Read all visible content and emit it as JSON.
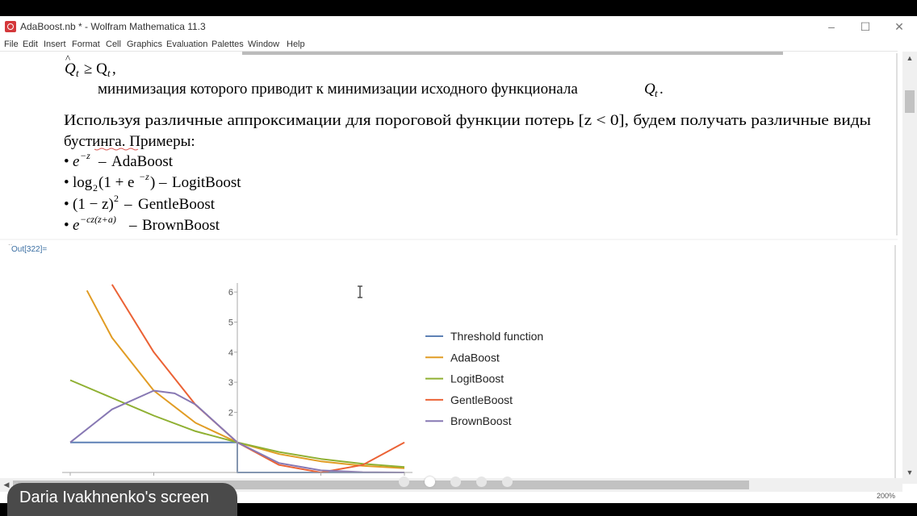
{
  "window": {
    "title": "AdaBoost.nb * - Wolfram Mathematica 11.3",
    "controls": {
      "minimize": "–",
      "maximize": "☐",
      "close": "✕"
    }
  },
  "menu": [
    "File",
    "Edit",
    "Insert",
    "Format",
    "Cell",
    "Graphics",
    "Evaluation",
    "Palettes",
    "Window",
    "Help"
  ],
  "text": {
    "ineq_lhs": "Q",
    "ineq_rhs": "≥ Q",
    "ineq_tail": ",",
    "sub_t": "t",
    "minimization": "минимизация которого приводит к минимизации исходного функционала",
    "q": "Q",
    "dot": ".",
    "para": "Используя различные аппроксимации для пороговой функции потерь [z < 0], будем получать различные виды",
    "para_cont": "бустинга. Примеры:",
    "bullet": "•",
    "dash": "–",
    "ex1_base": "e",
    "ex1_sup": "−z",
    "ex1_name": "AdaBoost",
    "ex2_log": "log",
    "ex2_sub": "2",
    "ex2_arg_open": "(1 + e",
    "ex2_sup": "−z",
    "ex2_close": ")",
    "ex2_name": "LogitBoost",
    "ex3": "(1 − z)",
    "ex3_sup": "2",
    "ex3_name": "GentleBoost",
    "ex4_base": "e",
    "ex4_sup": "−cz(z+a)",
    "ex4_name": "BrownBoost"
  },
  "out_label": "Out[322]=",
  "chart_data": {
    "type": "line",
    "xlim": [
      -2,
      2
    ],
    "ylim": [
      0,
      6.3
    ],
    "x_ticks": [
      -2,
      -1,
      1,
      2
    ],
    "y_ticks": [
      2,
      3,
      4,
      5,
      6
    ],
    "legend_position": "right",
    "series": [
      {
        "name": "Threshold function",
        "color": "#5e81b5",
        "x": [
          -2,
          0,
          0,
          2
        ],
        "y": [
          1,
          1,
          0,
          0
        ]
      },
      {
        "name": "AdaBoost",
        "color": "#e19c24",
        "x": [
          -1.8,
          -1.5,
          -1,
          -0.5,
          0,
          0.5,
          1,
          1.5,
          2
        ],
        "y": [
          6.05,
          4.48,
          2.72,
          1.65,
          1,
          0.61,
          0.37,
          0.22,
          0.14
        ]
      },
      {
        "name": "LogitBoost",
        "color": "#8fb032",
        "x": [
          -2,
          -1.5,
          -1,
          -0.5,
          0,
          0.5,
          1,
          1.5,
          2
        ],
        "y": [
          3.07,
          2.48,
          1.89,
          1.37,
          1,
          0.68,
          0.45,
          0.29,
          0.18
        ]
      },
      {
        "name": "GentleBoost",
        "color": "#eb6235",
        "x": [
          -1.5,
          -1,
          -0.5,
          0,
          0.5,
          1,
          1.5,
          2
        ],
        "y": [
          6.25,
          4,
          2.25,
          1,
          0.25,
          0,
          0.25,
          1
        ]
      },
      {
        "name": "BrownBoost",
        "color": "#8778b3",
        "x": [
          -2,
          -1.5,
          -1,
          -0.75,
          -0.5,
          0,
          0.5,
          1,
          1.5,
          2
        ],
        "y": [
          1,
          2.1,
          2.72,
          2.63,
          2.26,
          1,
          0.31,
          0.07,
          0.01,
          0.0
        ]
      }
    ]
  }
}
